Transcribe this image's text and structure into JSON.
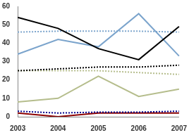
{
  "chart_data": {
    "type": "line",
    "categories": [
      "2003",
      "2004",
      "2005",
      "2006",
      "2007"
    ],
    "ylim": [
      0,
      60
    ],
    "yticks": [
      0,
      10,
      20,
      30,
      40,
      50,
      60
    ],
    "grid": false,
    "series": [
      {
        "color": "#000000",
        "line_style": "solid",
        "values": [
          54,
          48,
          37,
          31,
          49
        ]
      },
      {
        "color": "#7ba4cc",
        "line_style": "solid",
        "values": [
          34,
          42,
          38,
          56,
          33
        ]
      },
      {
        "color": "#7ba4cc",
        "line_style": "dotted",
        "values": [
          46,
          46.5,
          46.5,
          46.5,
          46
        ]
      },
      {
        "color": "#000000",
        "line_style": "dotted",
        "values": [
          25,
          26,
          27,
          27,
          28
        ]
      },
      {
        "color": "#b5bd8c",
        "line_style": "dotted",
        "values": [
          25,
          25,
          25,
          24,
          23
        ]
      },
      {
        "color": "#b5bd8c",
        "line_style": "solid",
        "values": [
          8,
          10,
          22,
          11,
          15
        ]
      },
      {
        "color": "#00008b",
        "line_style": "dotted",
        "values": [
          3,
          2,
          2.5,
          2.5,
          3
        ]
      },
      {
        "color": "#8b0000",
        "line_style": "solid",
        "values": [
          2,
          0,
          2,
          2,
          2
        ]
      }
    ]
  }
}
